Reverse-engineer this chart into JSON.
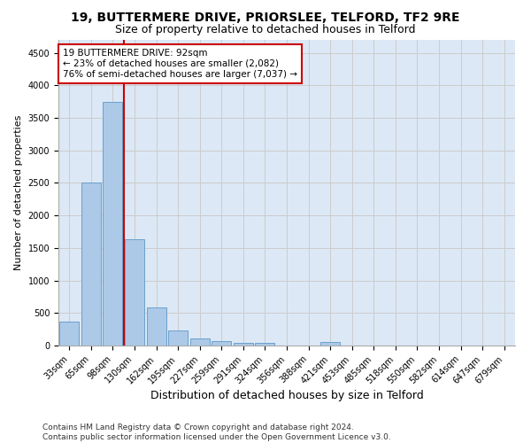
{
  "title1": "19, BUTTERMERE DRIVE, PRIORSLEE, TELFORD, TF2 9RE",
  "title2": "Size of property relative to detached houses in Telford",
  "xlabel": "Distribution of detached houses by size in Telford",
  "ylabel": "Number of detached properties",
  "categories": [
    "33sqm",
    "65sqm",
    "98sqm",
    "130sqm",
    "162sqm",
    "195sqm",
    "227sqm",
    "259sqm",
    "291sqm",
    "324sqm",
    "356sqm",
    "388sqm",
    "421sqm",
    "453sqm",
    "485sqm",
    "518sqm",
    "550sqm",
    "582sqm",
    "614sqm",
    "647sqm",
    "679sqm"
  ],
  "values": [
    370,
    2500,
    3750,
    1640,
    590,
    230,
    110,
    70,
    45,
    35,
    0,
    0,
    60,
    0,
    0,
    0,
    0,
    0,
    0,
    0,
    0
  ],
  "bar_color": "#adc9e8",
  "bar_edge_color": "#6aa0cc",
  "vline_color": "#cc0000",
  "annotation_text": "19 BUTTERMERE DRIVE: 92sqm\n← 23% of detached houses are smaller (2,082)\n76% of semi-detached houses are larger (7,037) →",
  "annotation_box_color": "#ffffff",
  "annotation_box_edge": "#cc0000",
  "ylim": [
    0,
    4700
  ],
  "yticks": [
    0,
    500,
    1000,
    1500,
    2000,
    2500,
    3000,
    3500,
    4000,
    4500
  ],
  "grid_color": "#cccccc",
  "bg_color": "#dce8f5",
  "footer": "Contains HM Land Registry data © Crown copyright and database right 2024.\nContains public sector information licensed under the Open Government Licence v3.0.",
  "title1_fontsize": 10,
  "title2_fontsize": 9,
  "xlabel_fontsize": 9,
  "ylabel_fontsize": 8,
  "tick_fontsize": 7,
  "footer_fontsize": 6.5
}
